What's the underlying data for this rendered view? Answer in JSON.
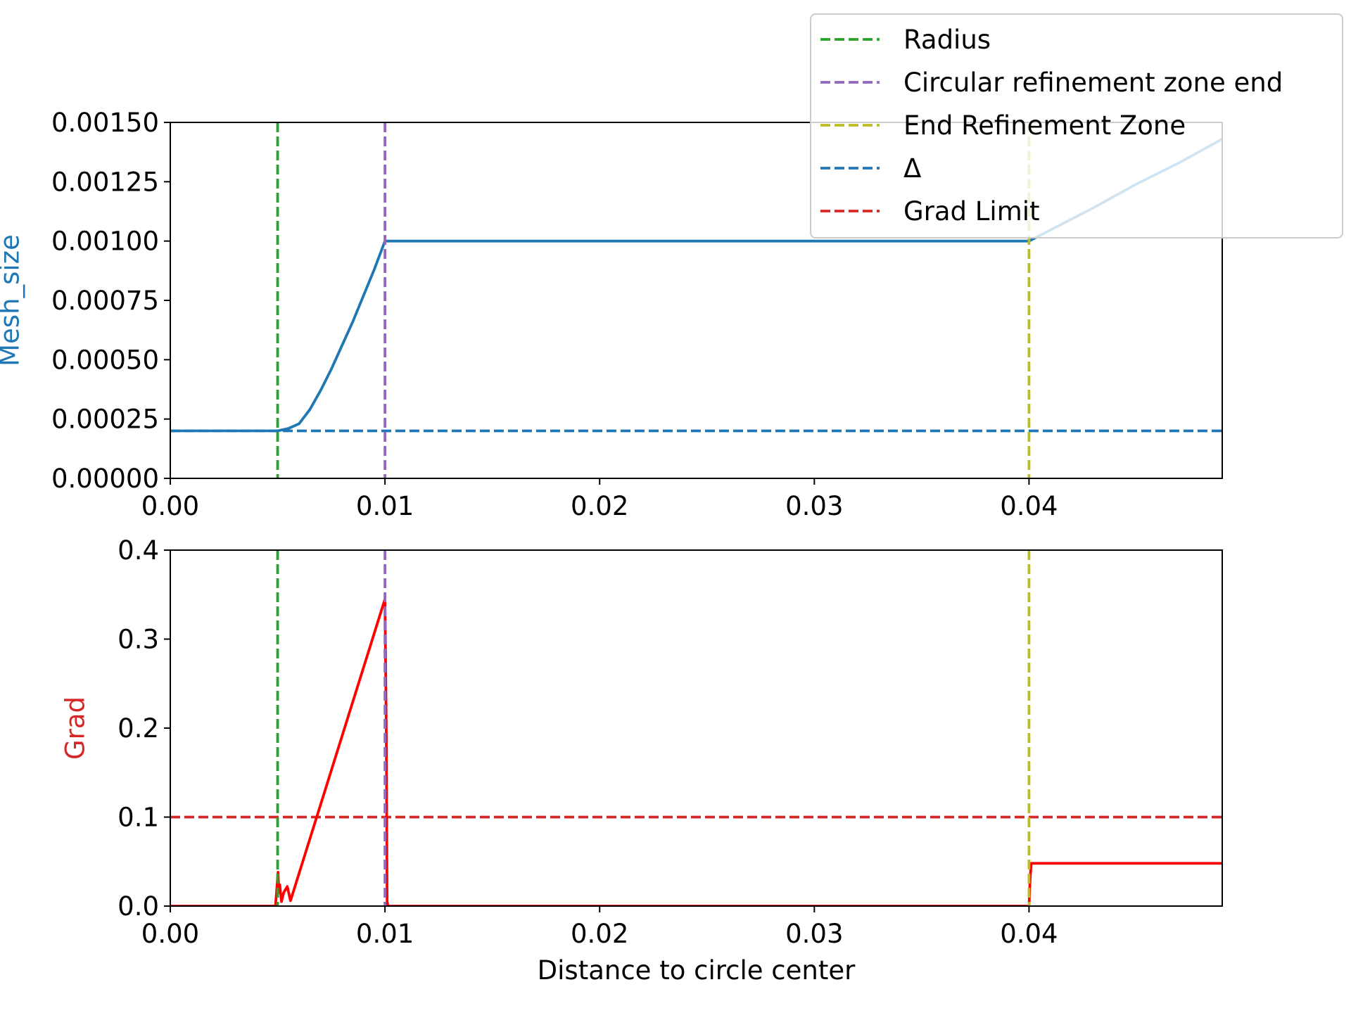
{
  "chart_data": [
    {
      "type": "line",
      "title": "",
      "xlabel": "",
      "ylabel": "Mesh_size",
      "xlim": [
        0.0,
        0.049
      ],
      "ylim": [
        0.0,
        0.0015
      ],
      "x_ticks": [
        0.0,
        0.01,
        0.02,
        0.03,
        0.04
      ],
      "x_tick_labels": [
        "0.00",
        "0.01",
        "0.02",
        "0.03",
        "0.04"
      ],
      "y_ticks": [
        0.0,
        0.00025,
        0.0005,
        0.00075,
        0.001,
        0.00125,
        0.0015
      ],
      "y_tick_labels": [
        "0.00000",
        "0.00025",
        "0.00050",
        "0.00075",
        "0.00100",
        "0.00125",
        "0.00150"
      ],
      "grid": false,
      "series": [
        {
          "name": "",
          "style": "solid",
          "color": "#1f77b4",
          "x": [
            0.0,
            0.005,
            0.0055,
            0.006,
            0.0065,
            0.007,
            0.0075,
            0.008,
            0.0085,
            0.009,
            0.0095,
            0.01,
            0.0101,
            0.02,
            0.03,
            0.04,
            0.0415,
            0.043,
            0.045,
            0.047,
            0.049
          ],
          "y": [
            0.0002,
            0.0002,
            0.00021,
            0.00023,
            0.00029,
            0.00037,
            0.00046,
            0.00056,
            0.00066,
            0.00077,
            0.00088,
            0.001,
            0.001,
            0.001,
            0.001,
            0.001,
            0.00107,
            0.00114,
            0.00124,
            0.00133,
            0.00143
          ]
        }
      ],
      "reference_lines": [
        {
          "name": "Radius",
          "orientation": "vertical",
          "value": 0.005,
          "color": "#2ca02c"
        },
        {
          "name": "Circular refinement zone end",
          "orientation": "vertical",
          "value": 0.01,
          "color": "#9467bd"
        },
        {
          "name": "End Refinement Zone",
          "orientation": "vertical",
          "value": 0.04,
          "color": "#bcbd22"
        },
        {
          "name": "Δ",
          "orientation": "horizontal",
          "value": 0.0002,
          "color": "#1f77b4"
        }
      ],
      "legend": {
        "placement": "top-right",
        "entries": [
          {
            "label": "Radius",
            "color": "#2ca02c"
          },
          {
            "label": "Circular refinement zone end",
            "color": "#9467bd"
          },
          {
            "label": "End Refinement Zone",
            "color": "#bcbd22"
          },
          {
            "label": "Δ",
            "color": "#1f77b4"
          },
          {
            "label": "Grad Limit",
            "color": "#d62728"
          }
        ]
      }
    },
    {
      "type": "line",
      "title": "",
      "xlabel": "Distance to circle center",
      "ylabel": "Grad",
      "xlim": [
        0.0,
        0.049
      ],
      "ylim": [
        0.0,
        0.4
      ],
      "x_ticks": [
        0.0,
        0.01,
        0.02,
        0.03,
        0.04
      ],
      "x_tick_labels": [
        "0.00",
        "0.01",
        "0.02",
        "0.03",
        "0.04"
      ],
      "y_ticks": [
        0.0,
        0.1,
        0.2,
        0.3,
        0.4
      ],
      "y_tick_labels": [
        "0.0",
        "0.1",
        "0.2",
        "0.3",
        "0.4"
      ],
      "grid": false,
      "series": [
        {
          "name": "",
          "style": "solid",
          "color": "#ff0000",
          "x": [
            0.0,
            0.0049,
            0.00502,
            0.00506,
            0.0051,
            0.00518,
            0.00528,
            0.00545,
            0.0056,
            0.01,
            0.01006,
            0.0101,
            0.01014,
            0.04,
            0.04005,
            0.0401,
            0.049
          ],
          "y": [
            0.0,
            0.0,
            0.038,
            0.015,
            0.024,
            0.005,
            0.015,
            0.022,
            0.006,
            0.345,
            0.2,
            0.005,
            0.0,
            0.0,
            0.03,
            0.048,
            0.048
          ]
        }
      ],
      "reference_lines": [
        {
          "name": "Radius",
          "orientation": "vertical",
          "value": 0.005,
          "color": "#2ca02c"
        },
        {
          "name": "Circular refinement zone end",
          "orientation": "vertical",
          "value": 0.01,
          "color": "#9467bd"
        },
        {
          "name": "End Refinement Zone",
          "orientation": "vertical",
          "value": 0.04,
          "color": "#bcbd22"
        },
        {
          "name": "Grad Limit",
          "orientation": "horizontal",
          "value": 0.1,
          "color": "#d62728"
        }
      ]
    }
  ],
  "colors": {
    "radius": "#2ca02c",
    "circular_zone_end": "#9467bd",
    "end_refinement_zone": "#bcbd22",
    "delta": "#1f77b4",
    "grad_limit": "#d62728",
    "mesh_size_line": "#1f77b4",
    "grad_line": "#ff0000",
    "mesh_size_ylabel": "#1f77b4",
    "grad_ylabel": "#d62728"
  }
}
